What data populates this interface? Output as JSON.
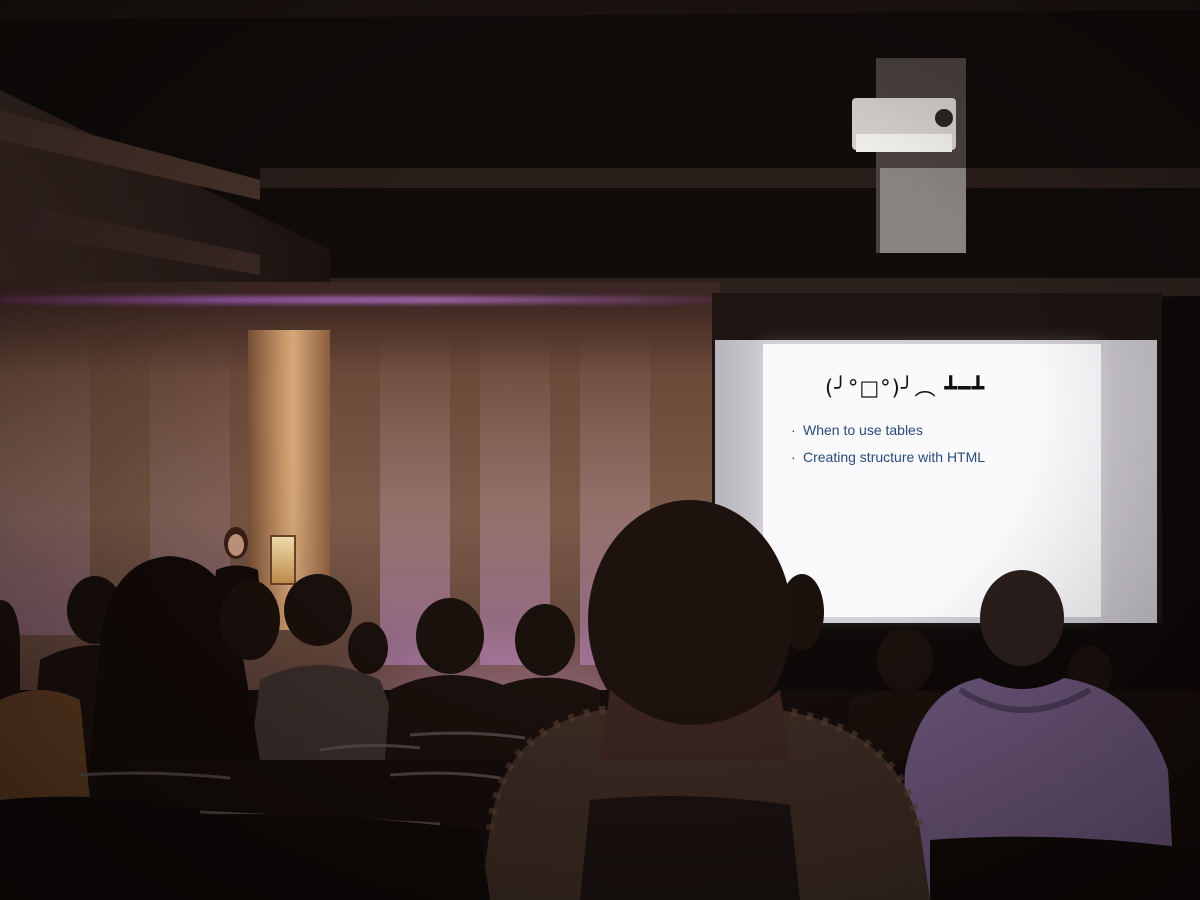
{
  "photo": {
    "subject": "conference-talk",
    "slide": {
      "title": "(╯°□°)╯︵ ┻━┻",
      "bullets": [
        "When to use tables",
        "Creating structure with HTML"
      ]
    },
    "colors": {
      "stage_wall": "#7a5a48",
      "stage_light": "#b070c0",
      "slide_background": "#fafafc",
      "slide_text": "#2a4a7a"
    }
  }
}
